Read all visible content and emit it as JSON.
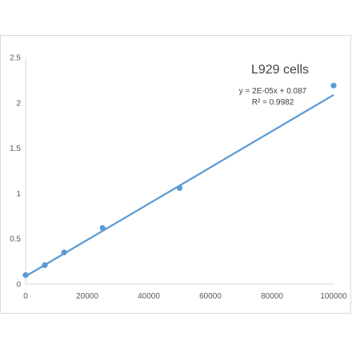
{
  "chart_data": {
    "type": "scatter",
    "title": "L929  cells",
    "xlabel": "",
    "ylabel": "",
    "xlim": [
      0,
      100000
    ],
    "ylim": [
      0,
      2.5
    ],
    "xticks": [
      "0",
      "20000",
      "40000",
      "60000",
      "80000",
      "100000"
    ],
    "yticks": [
      "0",
      "0.5",
      "1",
      "1.5",
      "2",
      "2.5"
    ],
    "grid": false,
    "legend": "none",
    "series": [
      {
        "points": [
          {
            "x": 0,
            "y": 0.1
          },
          {
            "x": 6250,
            "y": 0.21
          },
          {
            "x": 12500,
            "y": 0.35
          },
          {
            "x": 25000,
            "y": 0.62
          },
          {
            "x": 50000,
            "y": 1.06
          },
          {
            "x": 100000,
            "y": 2.19
          }
        ],
        "color": "#5b9bd5"
      }
    ],
    "trendline": {
      "type": "linear",
      "slope": 2e-05,
      "intercept": 0.087,
      "color": "#5b9bd5",
      "equation": "y = 2E-05x + 0.087",
      "r_squared": "R² = 0.9982"
    }
  }
}
